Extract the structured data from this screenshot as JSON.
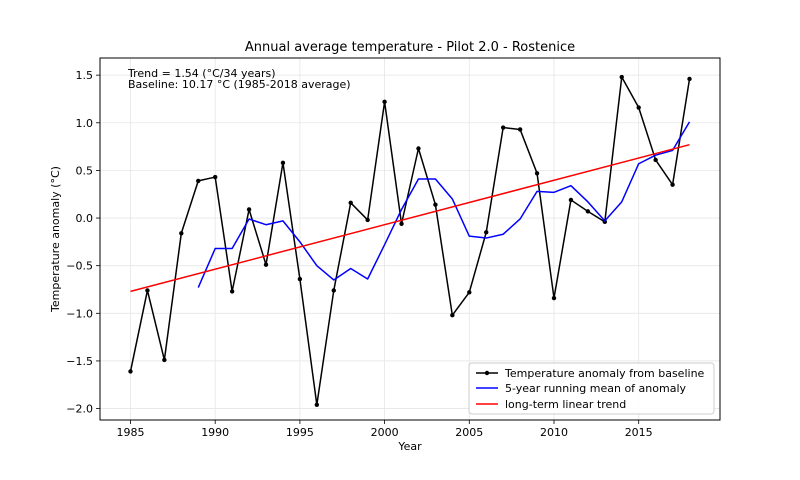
{
  "chart_data": {
    "type": "line",
    "title": "Annual average temperature - Pilot 2.0 - Rostenice",
    "xlabel": "Year",
    "ylabel": "Temperature anomaly (°C)",
    "xlim": [
      1983.2,
      2019.8
    ],
    "ylim": [
      -2.12,
      1.68
    ],
    "xticks": [
      1985,
      1990,
      1995,
      2000,
      2005,
      2010,
      2015
    ],
    "yticks": [
      -2.0,
      -1.5,
      -1.0,
      -0.5,
      0.0,
      0.5,
      1.0,
      1.5
    ],
    "ytick_labels": [
      "−2.0",
      "−1.5",
      "−1.0",
      "−0.5",
      "0.0",
      "0.5",
      "1.0",
      "1.5"
    ],
    "grid": true,
    "legend_position": "lower-right",
    "annotations": [
      "Trend = 1.54 (°C/34 years)",
      "Baseline: 10.17 °C (1985-2018 average)"
    ],
    "x": [
      1985,
      1986,
      1987,
      1988,
      1989,
      1990,
      1991,
      1992,
      1993,
      1994,
      1995,
      1996,
      1997,
      1998,
      1999,
      2000,
      2001,
      2002,
      2003,
      2004,
      2005,
      2006,
      2007,
      2008,
      2009,
      2010,
      2011,
      2012,
      2013,
      2014,
      2015,
      2016,
      2017,
      2018
    ],
    "series": [
      {
        "name": "Temperature anomaly from baseline",
        "color": "#000000",
        "markers": true,
        "x": [
          1985,
          1986,
          1987,
          1988,
          1989,
          1990,
          1991,
          1992,
          1993,
          1994,
          1995,
          1996,
          1997,
          1998,
          1999,
          2000,
          2001,
          2002,
          2003,
          2004,
          2005,
          2006,
          2007,
          2008,
          2009,
          2010,
          2011,
          2012,
          2013,
          2014,
          2015,
          2016,
          2017,
          2018
        ],
        "values": [
          -1.61,
          -0.76,
          -1.49,
          -0.16,
          0.39,
          0.43,
          -0.77,
          0.09,
          -0.49,
          0.58,
          -0.64,
          -1.96,
          -0.76,
          0.16,
          -0.02,
          1.22,
          -0.06,
          0.73,
          0.14,
          -1.02,
          -0.78,
          -0.15,
          0.95,
          0.93,
          0.47,
          -0.84,
          0.19,
          0.07,
          -0.04,
          1.48,
          1.16,
          0.61,
          0.35,
          1.46
        ]
      },
      {
        "name": "5-year running mean of anomaly",
        "color": "#0000ff",
        "markers": false,
        "x": [
          1989,
          1990,
          1991,
          1992,
          1993,
          1994,
          1995,
          1996,
          1997,
          1998,
          1999,
          2000,
          2001,
          2002,
          2003,
          2004,
          2005,
          2006,
          2007,
          2008,
          2009,
          2010,
          2011,
          2012,
          2013,
          2014,
          2015,
          2016,
          2017,
          2018
        ],
        "values": [
          -0.73,
          -0.32,
          -0.32,
          -0.01,
          -0.07,
          -0.03,
          -0.25,
          -0.5,
          -0.65,
          -0.53,
          -0.64,
          -0.28,
          0.09,
          0.41,
          0.41,
          0.2,
          -0.19,
          -0.21,
          -0.17,
          -0.01,
          0.28,
          0.27,
          0.34,
          0.17,
          -0.03,
          0.17,
          0.57,
          0.66,
          0.71,
          1.01
        ]
      },
      {
        "name": "long-term linear trend",
        "color": "#ff0000",
        "markers": false,
        "x": [
          1985,
          2018
        ],
        "values": [
          -0.77,
          0.77
        ]
      }
    ]
  }
}
